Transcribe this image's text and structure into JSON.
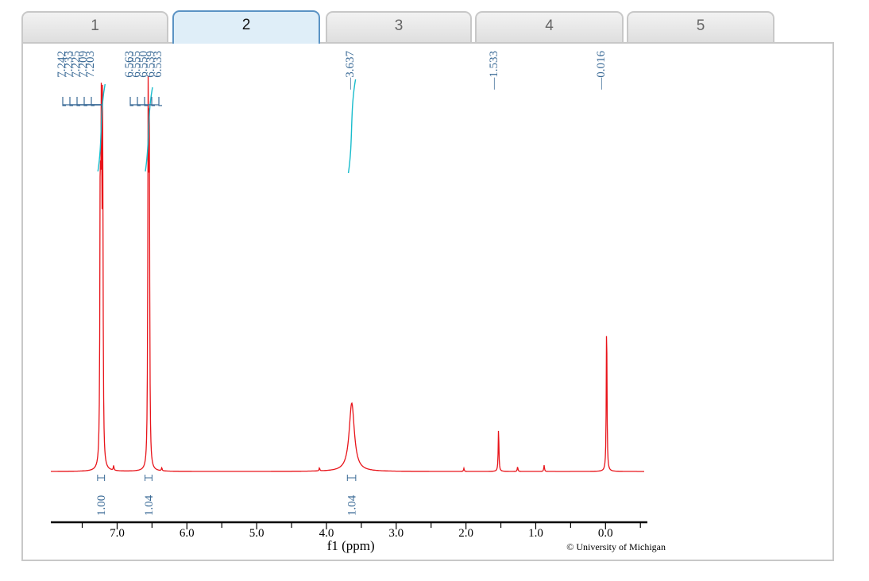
{
  "tabs": [
    {
      "label": "1",
      "active": false
    },
    {
      "label": "2",
      "active": true
    },
    {
      "label": "3",
      "active": false
    },
    {
      "label": "4",
      "active": false
    },
    {
      "label": "5",
      "active": false
    }
  ],
  "colors": {
    "spectrum": "#e8141a",
    "labels": "#3a6a96",
    "integral": "#18bccc",
    "axis": "#000000"
  },
  "chart_data": {
    "type": "line",
    "title": "",
    "xlabel": "f1 (ppm)",
    "ylabel": "",
    "xlim": [
      7.95,
      -0.6
    ],
    "x_reversed": true,
    "tick_labels": [
      "7.0",
      "6.0",
      "5.0",
      "4.0",
      "3.0",
      "2.0",
      "1.0",
      "0.0"
    ],
    "grid": false,
    "series": [
      {
        "peaks": [
          {
            "ppm": 7.242,
            "height": 0.86
          },
          {
            "ppm": 7.233,
            "height": 0.28
          },
          {
            "ppm": 7.225,
            "height": 0.98
          },
          {
            "ppm": 7.209,
            "height": 0.98
          },
          {
            "ppm": 7.203,
            "height": 0.25
          },
          {
            "ppm": 7.05,
            "height": 0.015
          },
          {
            "ppm": 6.563,
            "height": 0.05
          },
          {
            "ppm": 6.555,
            "height": 0.98
          },
          {
            "ppm": 6.55,
            "height": 0.28
          },
          {
            "ppm": 6.539,
            "height": 0.98
          },
          {
            "ppm": 6.533,
            "height": 0.05
          },
          {
            "ppm": 6.36,
            "height": 0.01
          },
          {
            "ppm": 4.1,
            "height": 0.01
          },
          {
            "ppm": 3.637,
            "height": 0.22
          },
          {
            "ppm": 2.03,
            "height": 0.01
          },
          {
            "ppm": 1.533,
            "height": 0.14
          },
          {
            "ppm": 1.26,
            "height": 0.015
          },
          {
            "ppm": 0.88,
            "height": 0.02
          },
          {
            "ppm": -0.016,
            "height": 0.5
          }
        ]
      }
    ],
    "peak_labels": [
      {
        "group": [
          "7.242",
          "7.233",
          "7.225",
          "7.209",
          "7.203"
        ]
      },
      {
        "group": [
          "6.563",
          "6.555",
          "6.550",
          "6.539",
          "6.533"
        ]
      },
      {
        "group": [
          "3.637"
        ]
      },
      {
        "group": [
          "1.533"
        ]
      },
      {
        "group": [
          "-0.016"
        ]
      }
    ],
    "integrals": [
      {
        "value": "1.00",
        "from": 7.28,
        "to": 7.18
      },
      {
        "value": "1.04",
        "from": 6.6,
        "to": 6.5
      },
      {
        "value": "1.04",
        "from": 3.7,
        "to": 3.58
      }
    ],
    "copyright": "© University of Michigan"
  }
}
